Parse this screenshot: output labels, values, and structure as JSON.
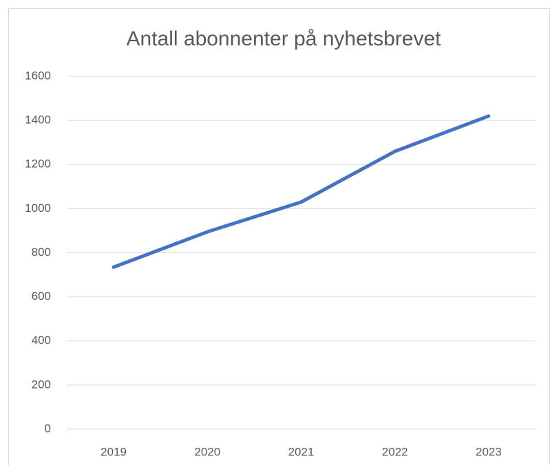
{
  "chart_data": {
    "type": "line",
    "title": "Antall abonnenter på nyhetsbrevet",
    "categories": [
      "2019",
      "2020",
      "2021",
      "2022",
      "2023"
    ],
    "series": [
      {
        "name": "Antall abonnenter",
        "color": "#4472c4",
        "values": [
          735,
          895,
          1030,
          1260,
          1420
        ]
      }
    ],
    "ylim": [
      0,
      1600
    ],
    "yticks": [
      0,
      200,
      400,
      600,
      800,
      1000,
      1200,
      1400,
      1600
    ],
    "grid": true
  }
}
